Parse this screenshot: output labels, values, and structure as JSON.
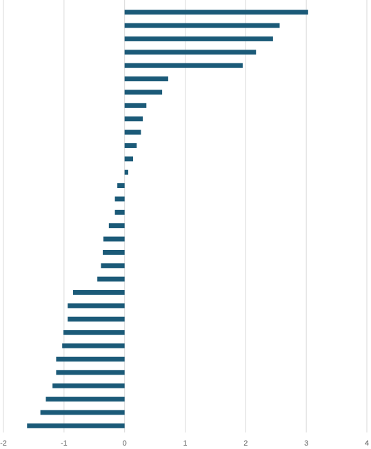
{
  "chart_data": {
    "type": "bar",
    "orientation": "horizontal",
    "title": "",
    "xlabel": "",
    "ylabel": "",
    "xlim": [
      -2,
      4
    ],
    "x_ticks": [
      "-2",
      "-1",
      "0",
      "1",
      "2",
      "3",
      "4"
    ],
    "grid": "vertical",
    "legend": "none",
    "bar_color": "#1b5a78",
    "grid_color": "#d9d9d9",
    "values": [
      3.03,
      2.56,
      2.45,
      2.17,
      1.95,
      0.72,
      0.62,
      0.36,
      0.3,
      0.27,
      0.2,
      0.14,
      0.06,
      -0.12,
      -0.16,
      -0.16,
      -0.26,
      -0.35,
      -0.36,
      -0.39,
      -0.45,
      -0.85,
      -0.94,
      -0.94,
      -1.01,
      -1.03,
      -1.13,
      -1.13,
      -1.19,
      -1.3,
      -1.39,
      -1.61
    ]
  }
}
